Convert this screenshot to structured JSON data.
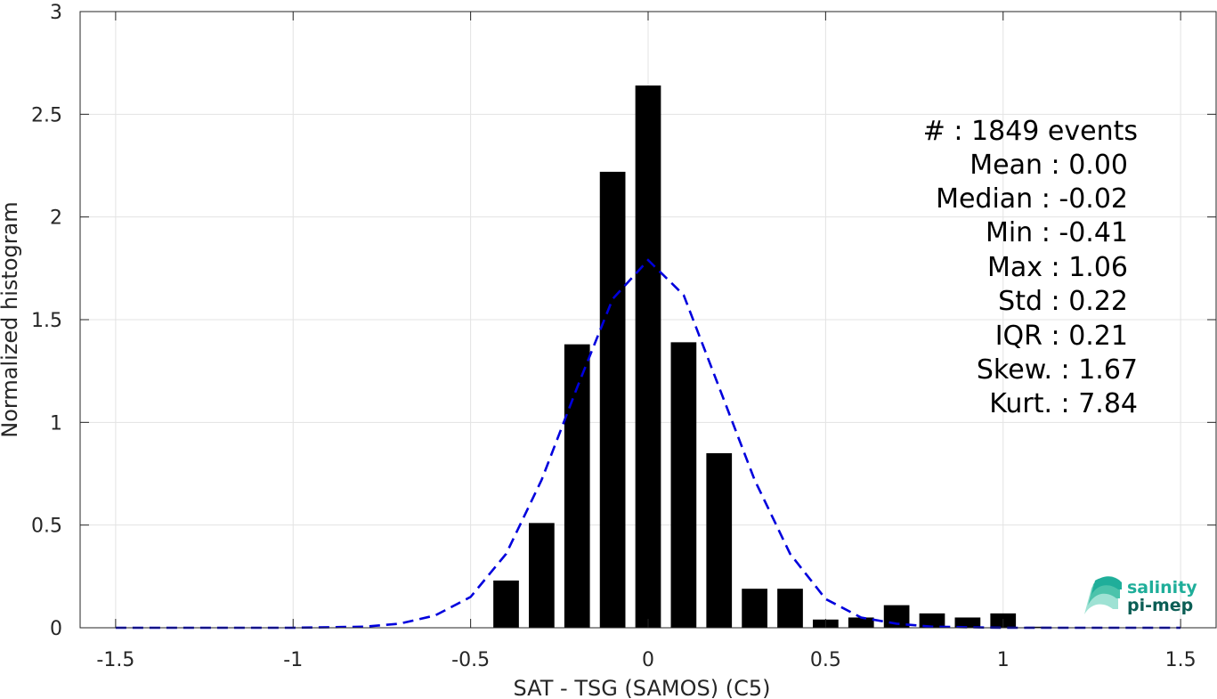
{
  "chart_data": {
    "type": "bar",
    "title": "",
    "xlabel": "SAT - TSG (SAMOS) (C5)",
    "ylabel": "Normalized histogram",
    "xlim": [
      -1.6,
      1.6
    ],
    "ylim": [
      0,
      3
    ],
    "grid": true,
    "x_ticks": [
      "-1.5",
      "-1",
      "-0.5",
      "0",
      "0.5",
      "1",
      "1.5"
    ],
    "x_tick_values": [
      -1.5,
      -1,
      -0.5,
      0,
      0.5,
      1,
      1.5
    ],
    "y_ticks": [
      "0",
      "0.5",
      "1",
      "1.5",
      "2",
      "2.5",
      "3"
    ],
    "y_tick_values": [
      0,
      0.5,
      1,
      1.5,
      2,
      2.5,
      3
    ],
    "bar_color": "#000000",
    "fit_color": "#0000dd",
    "bar_width": 0.072,
    "bars": [
      {
        "x": -0.4,
        "y": 0.23
      },
      {
        "x": -0.3,
        "y": 0.51
      },
      {
        "x": -0.2,
        "y": 1.38
      },
      {
        "x": -0.1,
        "y": 2.22
      },
      {
        "x": 0.0,
        "y": 2.64
      },
      {
        "x": 0.1,
        "y": 1.39
      },
      {
        "x": 0.2,
        "y": 0.85
      },
      {
        "x": 0.3,
        "y": 0.19
      },
      {
        "x": 0.4,
        "y": 0.19
      },
      {
        "x": 0.5,
        "y": 0.04
      },
      {
        "x": 0.6,
        "y": 0.05
      },
      {
        "x": 0.7,
        "y": 0.11
      },
      {
        "x": 0.8,
        "y": 0.07
      },
      {
        "x": 0.9,
        "y": 0.05
      },
      {
        "x": 1.0,
        "y": 0.07
      },
      {
        "x": 1.1,
        "y": 0.005
      }
    ],
    "fit_curve": [
      {
        "x": -1.5,
        "y": 0.0
      },
      {
        "x": -1.0,
        "y": 0.0
      },
      {
        "x": -0.8,
        "y": 0.005
      },
      {
        "x": -0.7,
        "y": 0.02
      },
      {
        "x": -0.6,
        "y": 0.06
      },
      {
        "x": -0.5,
        "y": 0.15
      },
      {
        "x": -0.4,
        "y": 0.36
      },
      {
        "x": -0.3,
        "y": 0.72
      },
      {
        "x": -0.2,
        "y": 1.17
      },
      {
        "x": -0.1,
        "y": 1.6
      },
      {
        "x": 0.0,
        "y": 1.79
      },
      {
        "x": 0.1,
        "y": 1.62
      },
      {
        "x": 0.2,
        "y": 1.17
      },
      {
        "x": 0.3,
        "y": 0.72
      },
      {
        "x": 0.4,
        "y": 0.36
      },
      {
        "x": 0.5,
        "y": 0.14
      },
      {
        "x": 0.6,
        "y": 0.05
      },
      {
        "x": 0.7,
        "y": 0.02
      },
      {
        "x": 0.8,
        "y": 0.005
      },
      {
        "x": 1.0,
        "y": 0.0
      },
      {
        "x": 1.5,
        "y": 0.0
      }
    ]
  },
  "stats": [
    "#  : 1849 events",
    "Mean : 0.00",
    "Median : -0.02",
    "Min : -0.41",
    "Max : 1.06",
    "Std : 0.22",
    "IQR : 0.21",
    "Skew. : 1.67",
    "Kurt. : 7.84"
  ],
  "logo": {
    "line1": "salinity",
    "line2": "pi-mep",
    "color1": "#1fae9a",
    "color2": "#0b5e55"
  }
}
